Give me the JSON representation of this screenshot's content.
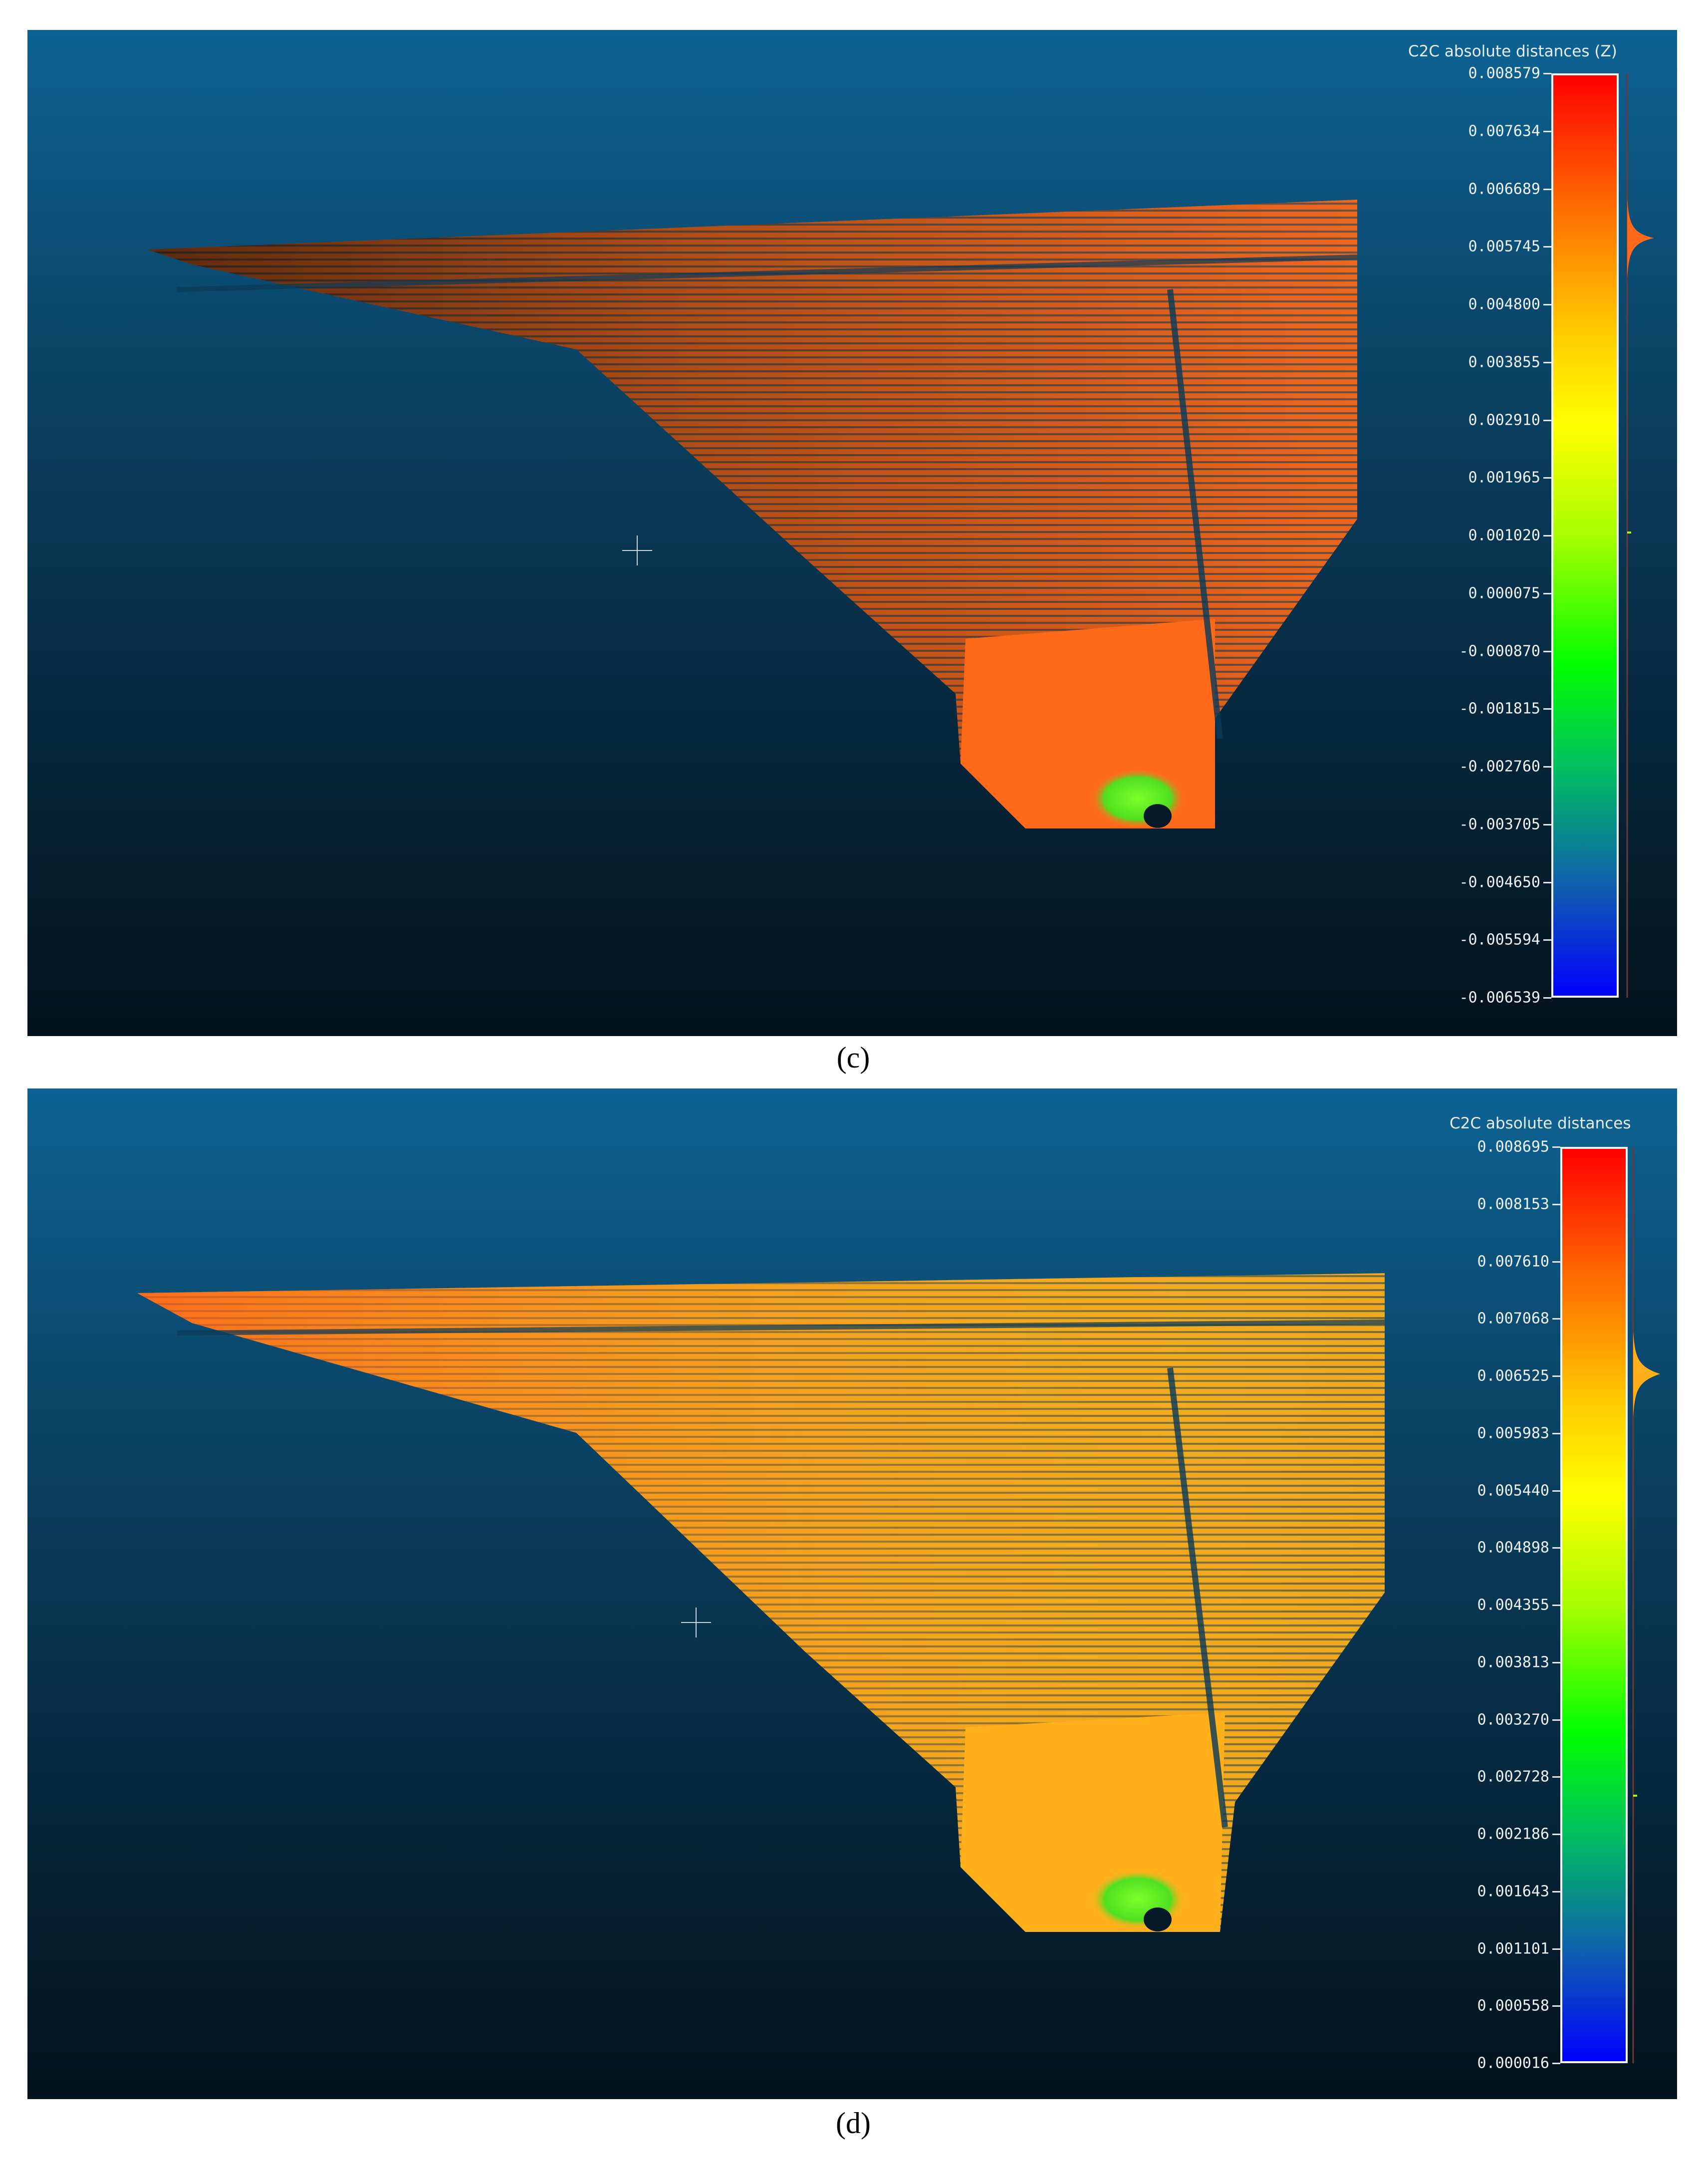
{
  "panels": {
    "c": {
      "caption": "(c)",
      "scalar_field": {
        "title": "C2C absolute distances (Z)",
        "ticks": [
          "0.008579",
          "0.007634",
          "0.006689",
          "0.005745",
          "0.004800",
          "0.003855",
          "0.002910",
          "0.001965",
          "0.001020",
          "0.000075",
          "-0.000870",
          "-0.001815",
          "-0.002760",
          "-0.003705",
          "-0.004650",
          "-0.005594",
          "-0.006539"
        ]
      },
      "dominant_color": "#ff6a1a"
    },
    "d": {
      "caption": "(d)",
      "scalar_field": {
        "title": "C2C absolute distances",
        "ticks": [
          "0.008695",
          "0.008153",
          "0.007610",
          "0.007068",
          "0.006525",
          "0.005983",
          "0.005440",
          "0.004898",
          "0.004355",
          "0.003813",
          "0.003270",
          "0.002728",
          "0.002186",
          "0.001643",
          "0.001101",
          "0.000558",
          "0.000016"
        ]
      },
      "dominant_color": "#ffb01a"
    }
  },
  "colors": {
    "scale_gradient": [
      "#ff0000",
      "#ff6a00",
      "#ffcc00",
      "#ffff00",
      "#a8ff00",
      "#00ff00",
      "#00c060",
      "#1060b0",
      "#0000ff"
    ],
    "background_top": "#0d6394",
    "background_bottom": "#03121c"
  },
  "icons": {
    "crosshair": "crosshair-icon"
  }
}
